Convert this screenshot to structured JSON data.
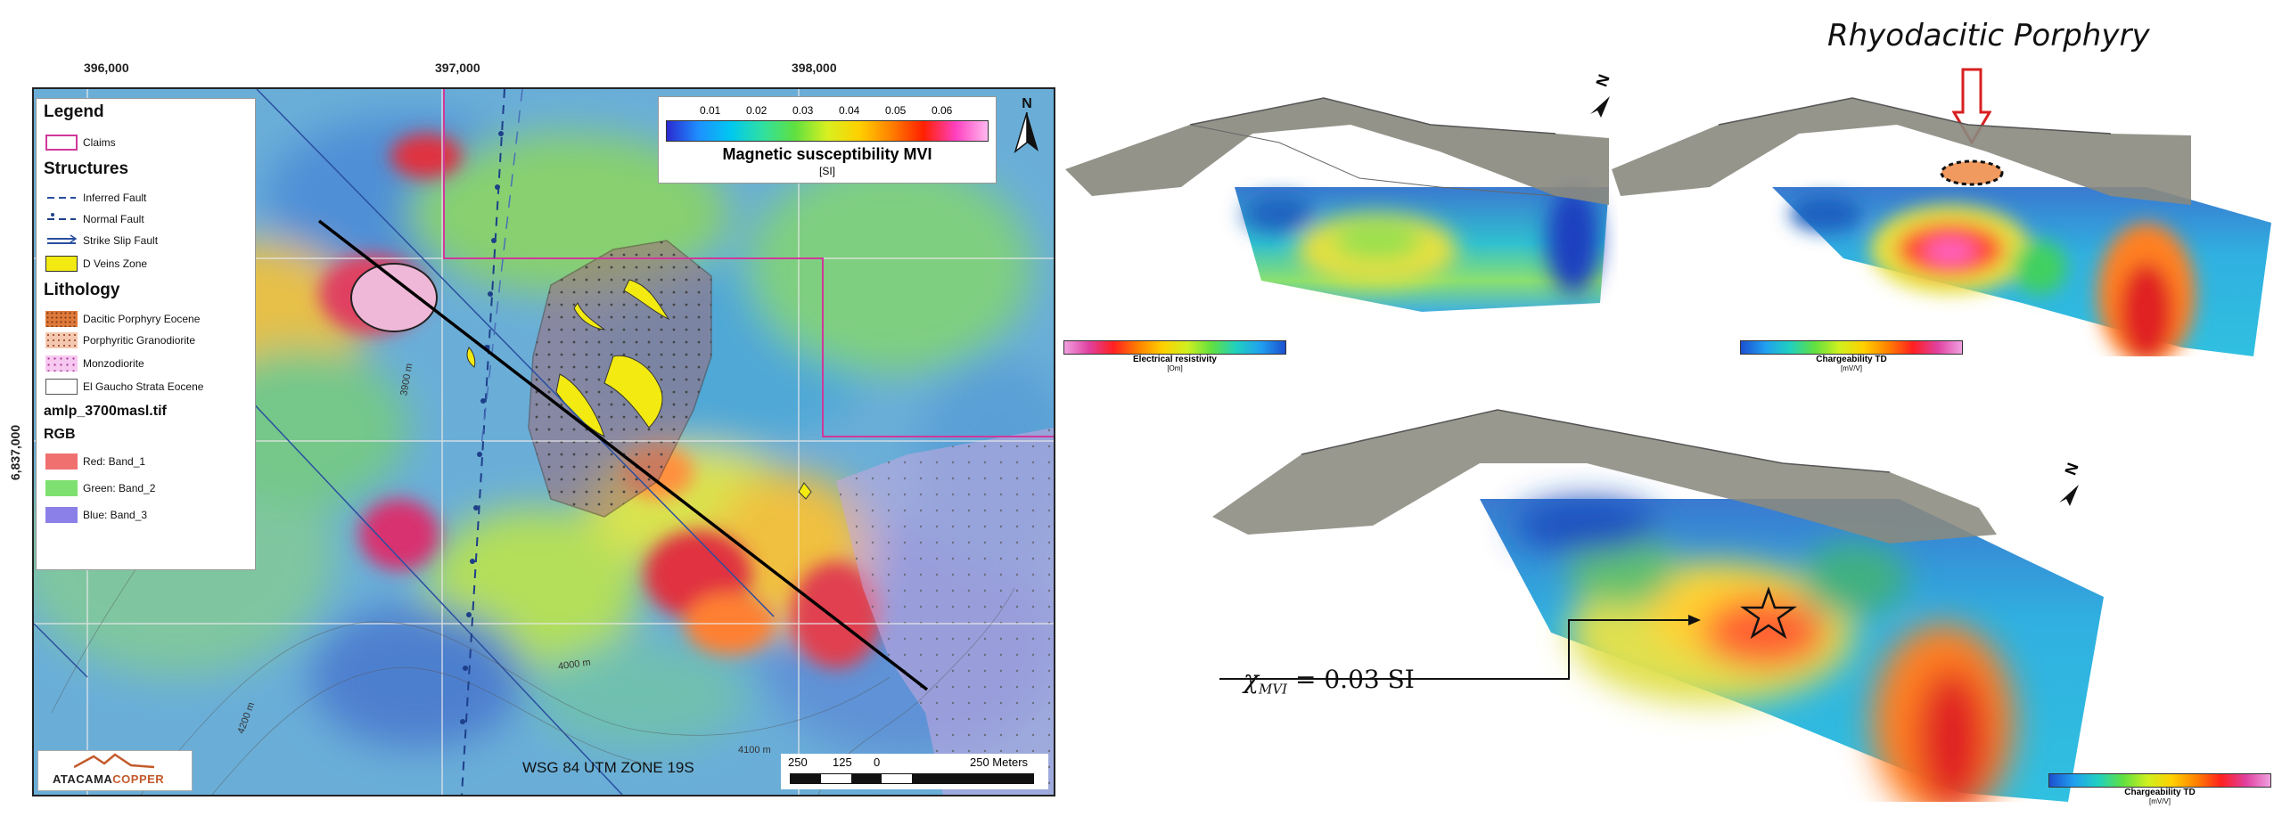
{
  "map": {
    "x_coords": [
      "396,000",
      "397,000",
      "398,000"
    ],
    "y_coord": "6,837,000",
    "north_label": "N",
    "legend": {
      "title": "Legend",
      "claims": "Claims",
      "structures_title": "Structures",
      "inferred_fault": "Inferred Fault",
      "normal_fault": "Normal Fault",
      "strike_slip_fault": "Strike Slip Fault",
      "d_veins_zone": "D Veins Zone",
      "lithology_title": "Lithology",
      "dacitic": "Dacitic Porphyry Eocene",
      "porphyritic": "Porphyritic Granodiorite",
      "monzodiorite": "Monzodiorite",
      "el_gaucho": "El Gaucho Strata Eocene",
      "raster_title": "amlp_3700masl.tif",
      "rgb_title": "RGB",
      "red": "Red:   Band_1",
      "green": "Green: Band_2",
      "blue": "Blue:  Band_3"
    },
    "colorbar": {
      "ticks": [
        "0.01",
        "0.02",
        "0.03",
        "0.04",
        "0.05",
        "0.06"
      ],
      "title": "Magnetic susceptibility MVI",
      "unit": "[SI]"
    },
    "contours": [
      "3900 m",
      "4000 m",
      "4100 m",
      "4200 m"
    ],
    "datum": "WSG 84 UTM ZONE 19S",
    "scale": {
      "ticks": [
        "250",
        "125",
        "0",
        "250 Meters"
      ]
    },
    "logo_a": "ATACAMA",
    "logo_b": "COPPER",
    "colors": {
      "claims": "#d0389a",
      "fault": "#2a4fa0",
      "veins": "#f2ea10",
      "dacitic": "#e07a3a"
    }
  },
  "models": {
    "title": "Rhyodacitic Porphyry",
    "north_label": "N",
    "resistivity_title": "Electrical resistivity",
    "resistivity_unit": "[Om]",
    "chargeability_title": "Chargeability TD",
    "chargeability_unit": "[mV/V]",
    "annotation_symbol": "χ",
    "annotation_sub": "MVI",
    "annotation_value": "= 0.03 SI"
  }
}
